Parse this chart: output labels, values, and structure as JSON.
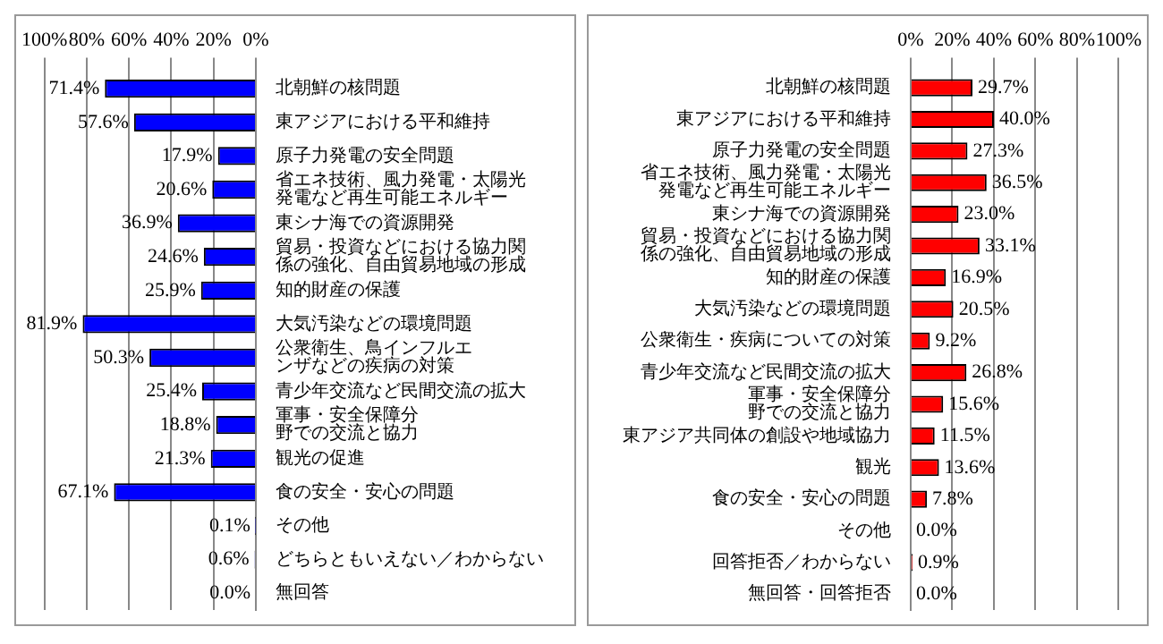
{
  "chart_data": [
    {
      "type": "bar",
      "orientation": "horizontal",
      "categories": [
        "北朝鮮の核問題",
        "東アジアにおける平和維持",
        "原子力発電の安全問題",
        "省エネ技術、風力発電・太陽光発電など再生可能エネルギー",
        "東シナ海での資源開発",
        "貿易・投資などにおける協力関係の強化、自由貿易地域の形成",
        "知的財産の保護",
        "大気汚染などの環境問題",
        "公衆衛生、鳥インフルエンザなどの疾病の対策",
        "青少年交流など民間交流の拡大",
        "軍事・安全保障分野での交流と協力",
        "観光の促進",
        "食の安全・安心の問題",
        "その他",
        "どちらともいえない／わからない",
        "無回答"
      ],
      "series": [
        {
          "color": "#0000ff",
          "values": [
            71.4,
            57.6,
            17.9,
            20.6,
            36.9,
            24.6,
            25.9,
            81.9,
            50.3,
            25.4,
            18.8,
            21.3,
            67.1,
            0.1,
            0.6,
            0.0
          ],
          "value_labels": [
            "71.4%",
            "57.6%",
            "17.9%",
            "20.6%",
            "36.9%",
            "24.6%",
            "25.9%",
            "81.9%",
            "50.3%",
            "25.4%",
            "18.8%",
            "21.3%",
            "67.1%",
            "0.1%",
            "0.6%",
            "0.0%"
          ]
        }
      ],
      "xlim": [
        100,
        0
      ],
      "xticks": [
        {
          "value": 100,
          "label": "100%"
        },
        {
          "value": 80,
          "label": "80%"
        },
        {
          "value": 60,
          "label": "60%"
        },
        {
          "value": 40,
          "label": "40%"
        },
        {
          "value": 20,
          "label": "20%"
        },
        {
          "value": 0,
          "label": "0%"
        }
      ],
      "grid": "x"
    },
    {
      "type": "bar",
      "orientation": "horizontal",
      "categories": [
        "北朝鮮の核問題",
        "東アジアにおける平和維持",
        "原子力発電の安全問題",
        "省エネ技術、風力発電・太陽光発電など再生可能エネルギー",
        "東シナ海での資源開発",
        "貿易・投資などにおける協力関係の強化、自由貿易地域の形成",
        "知的財産の保護",
        "大気汚染などの環境問題",
        "公衆衛生・疾病についての対策",
        "青少年交流など民間交流の拡大",
        "軍事・安全保障分野での交流と協力",
        "東アジア共同体の創設や地域協力",
        "観光",
        "食の安全・安心の問題",
        "その他",
        "回答拒否／わからない",
        "無回答・回答拒否"
      ],
      "series": [
        {
          "color": "#ff0000",
          "values": [
            29.7,
            40.0,
            27.3,
            36.5,
            23.0,
            33.1,
            16.9,
            20.5,
            9.2,
            26.8,
            15.6,
            11.5,
            13.6,
            7.8,
            0.0,
            0.9,
            0.0
          ],
          "value_labels": [
            "29.7%",
            "40.0%",
            "27.3%",
            "36.5%",
            "23.0%",
            "33.1%",
            "16.9%",
            "20.5%",
            "9.2%",
            "26.8%",
            "15.6%",
            "11.5%",
            "13.6%",
            "7.8%",
            "0.0%",
            "0.9%",
            "0.0%"
          ]
        }
      ],
      "xlim": [
        0,
        100
      ],
      "xticks": [
        {
          "value": 0,
          "label": "0%"
        },
        {
          "value": 20,
          "label": "20%"
        },
        {
          "value": 40,
          "label": "40%"
        },
        {
          "value": 60,
          "label": "60%"
        },
        {
          "value": 80,
          "label": "80%"
        },
        {
          "value": 100,
          "label": "100%"
        }
      ],
      "grid": "x"
    }
  ]
}
